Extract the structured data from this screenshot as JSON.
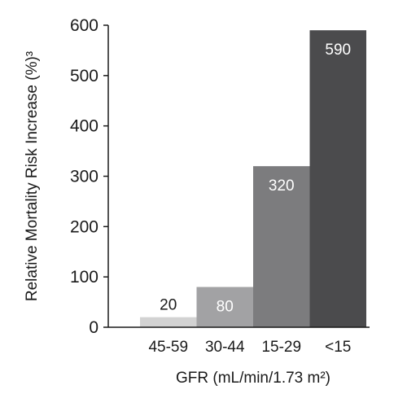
{
  "chart_data": {
    "type": "bar",
    "categories": [
      "45-59",
      "30-44",
      "15-29",
      "<15"
    ],
    "values": [
      20,
      80,
      320,
      590
    ],
    "data_labels": [
      "20",
      "80",
      "320",
      "590"
    ],
    "colors": [
      "#d2d2d2",
      "#a2a2a4",
      "#7c7c7e",
      "#4b4b4d"
    ],
    "label_colors": [
      "#1a1a1a",
      "#ffffff",
      "#ffffff",
      "#ffffff"
    ],
    "xlabel": "GFR (mL/min/1.73 m²)",
    "ylabel": "Relative Mortality Risk Increase (%)³",
    "ylim": [
      0,
      600
    ],
    "yticks": [
      "0",
      "100",
      "200",
      "300",
      "400",
      "500",
      "600"
    ],
    "grid": false,
    "legend": "none"
  }
}
